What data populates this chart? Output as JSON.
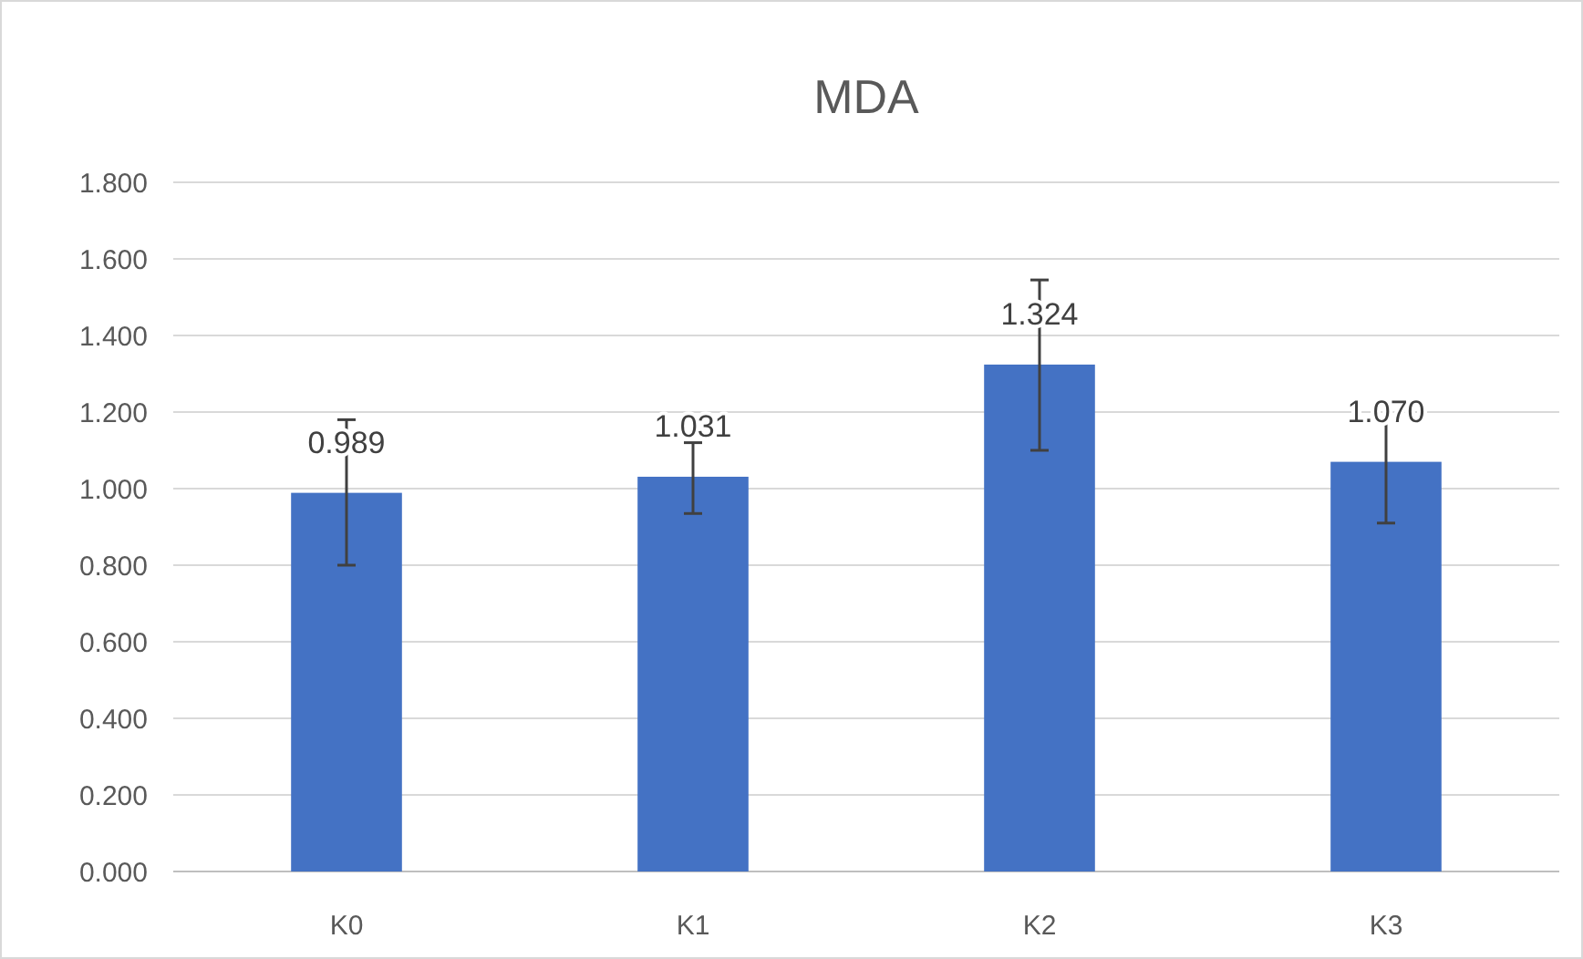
{
  "chart_data": {
    "type": "bar",
    "title": "MDA",
    "categories": [
      "K0",
      "K1",
      "K2",
      "K3"
    ],
    "series": [
      {
        "color": "#4472c4",
        "values": [
          0.989,
          1.031,
          1.324,
          1.07
        ],
        "value_labels": [
          "0.989",
          "1.031",
          "1.324",
          "1.070"
        ],
        "errors": [
          [
            0.8,
            1.18
          ],
          [
            0.935,
            1.12
          ],
          [
            1.1,
            1.545
          ],
          [
            0.91,
            1.225
          ]
        ]
      }
    ],
    "ylim": [
      0,
      1.8
    ],
    "yticks": [
      {
        "value": 0,
        "label": "0.000"
      },
      {
        "value": 0.2,
        "label": "0.200"
      },
      {
        "value": 0.4,
        "label": "0.400"
      },
      {
        "value": 0.6,
        "label": "0.600"
      },
      {
        "value": 0.8,
        "label": "0.800"
      },
      {
        "value": 1,
        "label": "1.000"
      },
      {
        "value": 1.2,
        "label": "1.200"
      },
      {
        "value": 1.4,
        "label": "1.400"
      },
      {
        "value": 1.6,
        "label": "1.600"
      },
      {
        "value": 1.8,
        "label": "1.800"
      }
    ],
    "grid": "y"
  }
}
